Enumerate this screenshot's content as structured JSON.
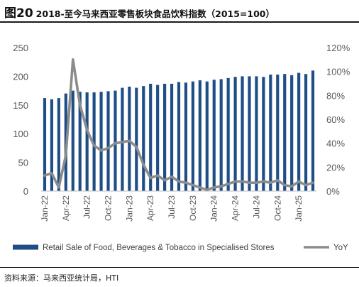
{
  "figure": {
    "number": "图20",
    "title": "2018-至今马来西亚零售板块食品饮料指数（2015=100）",
    "source": "资料来源：马来西亚统计局，HTI"
  },
  "colors": {
    "bar": "#1f4e87",
    "line": "#8c8c8c",
    "axis": "#bfbfbf",
    "tick_text": "#595959"
  },
  "chart_data": {
    "type": "bar+line",
    "title": "",
    "categories": [
      "Jan-22",
      "Feb-22",
      "Mar-22",
      "Apr-22",
      "May-22",
      "Jun-22",
      "Jul-22",
      "Aug-22",
      "Sep-22",
      "Oct-22",
      "Nov-22",
      "Dec-22",
      "Jan-23",
      "Feb-23",
      "Mar-23",
      "Apr-23",
      "May-23",
      "Jun-23",
      "Jul-23",
      "Aug-23",
      "Sep-23",
      "Oct-23",
      "Nov-23",
      "Dec-23",
      "Jan-24",
      "Feb-24",
      "Mar-24",
      "Apr-24",
      "May-24",
      "Jun-24",
      "Jul-24",
      "Aug-24",
      "Sep-24",
      "Oct-24",
      "Nov-24",
      "Dec-24",
      "Jan-25",
      "Feb-25",
      "Mar-25"
    ],
    "x_tick_labels": [
      "Jan-22",
      "Apr-22",
      "Jul-22",
      "Oct-22",
      "Jan-23",
      "Apr-23",
      "Jul-23",
      "Oct-23",
      "Jan-24",
      "Apr-24",
      "Jul-24",
      "Oct-24",
      "Jan-25"
    ],
    "series": [
      {
        "name": "Retail Sale of Food, Beverages & Tobacco in Specialised Stores",
        "type": "bar",
        "axis": "left",
        "values": [
          162,
          160,
          162,
          170,
          175,
          173,
          172,
          172,
          173,
          174,
          175,
          180,
          182,
          180,
          183,
          187,
          185,
          187,
          187,
          190,
          189,
          191,
          193,
          191,
          194,
          195,
          197,
          199,
          200,
          200,
          200,
          199,
          203,
          203,
          204,
          202,
          206,
          204,
          210
        ]
      },
      {
        "name": "YoY",
        "type": "line",
        "axis": "right",
        "values": [
          0.13,
          0.15,
          0.03,
          0.3,
          1.1,
          0.72,
          0.51,
          0.38,
          0.34,
          0.36,
          0.4,
          0.41,
          0.42,
          0.37,
          0.22,
          0.11,
          0.13,
          0.09,
          0.12,
          0.08,
          0.07,
          0.05,
          0.03,
          0.01,
          0.03,
          0.04,
          0.06,
          0.08,
          0.08,
          0.07,
          0.07,
          0.08,
          0.07,
          0.09,
          0.05,
          0.04,
          0.08,
          0.05,
          0.07
        ]
      }
    ],
    "left_axis": {
      "ylim": [
        0,
        250
      ],
      "ticks": [
        0,
        50,
        100,
        150,
        200,
        250
      ]
    },
    "right_axis": {
      "ylim": [
        0,
        1.2
      ],
      "ticks": [
        "0%",
        "20%",
        "40%",
        "60%",
        "80%",
        "100%",
        "120%"
      ]
    },
    "grid": false,
    "legend_position": "bottom"
  }
}
